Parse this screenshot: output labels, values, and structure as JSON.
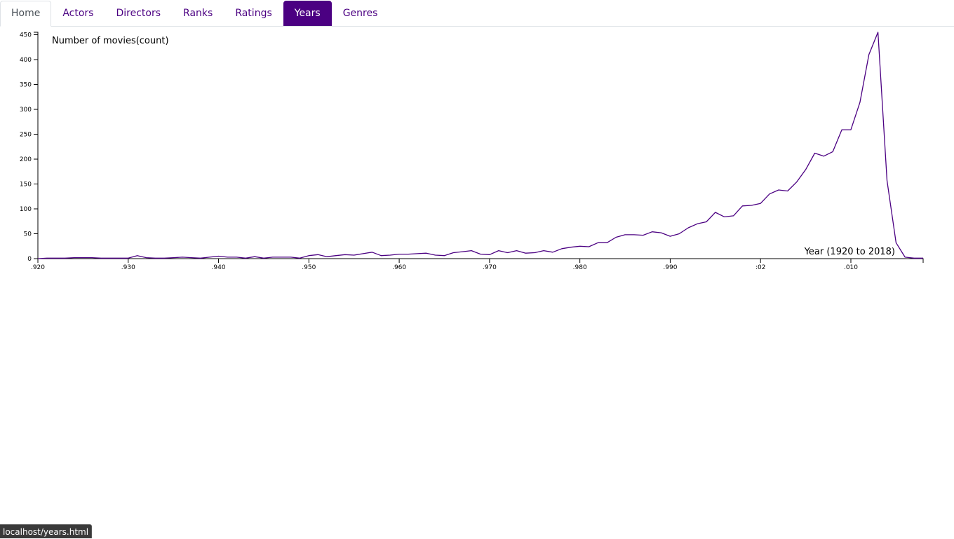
{
  "nav": {
    "tabs": [
      {
        "label": "Home",
        "state": "home"
      },
      {
        "label": "Actors",
        "state": ""
      },
      {
        "label": "Directors",
        "state": ""
      },
      {
        "label": "Ranks",
        "state": ""
      },
      {
        "label": "Ratings",
        "state": ""
      },
      {
        "label": "Years",
        "state": "active"
      },
      {
        "label": "Genres",
        "state": ""
      }
    ]
  },
  "colors": {
    "accent": "#4b0082",
    "line": "#4b0082"
  },
  "chart_data": {
    "type": "line",
    "ylabel": "Number of movies(count)",
    "xlabel": "Year (1920 to 2018)",
    "xlim": [
      1920,
      2018
    ],
    "ylim": [
      0,
      455
    ],
    "y_ticks": [
      0,
      50,
      100,
      150,
      200,
      250,
      300,
      350,
      400,
      450
    ],
    "x_ticks": [
      {
        "value": 1920,
        "label": ".920"
      },
      {
        "value": 1930,
        "label": ".930"
      },
      {
        "value": 1940,
        "label": ".940"
      },
      {
        "value": 1950,
        "label": ".950"
      },
      {
        "value": 1960,
        "label": ".960"
      },
      {
        "value": 1970,
        "label": ".970"
      },
      {
        "value": 1980,
        "label": ".980"
      },
      {
        "value": 1990,
        "label": ".990"
      },
      {
        "value": 2000,
        "label": ":02"
      },
      {
        "value": 2010,
        "label": ".010"
      }
    ],
    "grid": false,
    "x": [
      1920,
      1921,
      1922,
      1923,
      1924,
      1925,
      1926,
      1927,
      1928,
      1929,
      1930,
      1931,
      1932,
      1933,
      1934,
      1935,
      1936,
      1937,
      1938,
      1939,
      1940,
      1941,
      1942,
      1943,
      1944,
      1945,
      1946,
      1947,
      1948,
      1949,
      1950,
      1951,
      1952,
      1953,
      1954,
      1955,
      1956,
      1957,
      1958,
      1959,
      1960,
      1961,
      1962,
      1963,
      1964,
      1965,
      1966,
      1967,
      1968,
      1969,
      1970,
      1971,
      1972,
      1973,
      1974,
      1975,
      1976,
      1977,
      1978,
      1979,
      1980,
      1981,
      1982,
      1983,
      1984,
      1985,
      1986,
      1987,
      1988,
      1989,
      1990,
      1991,
      1992,
      1993,
      1994,
      1995,
      1996,
      1997,
      1998,
      1999,
      2000,
      2001,
      2002,
      2003,
      2004,
      2005,
      2006,
      2007,
      2008,
      2009,
      2010,
      2011,
      2012,
      2013,
      2014,
      2015,
      2016,
      2017,
      2018
    ],
    "values": [
      0,
      1,
      1,
      1,
      2,
      2,
      2,
      1,
      1,
      1,
      1,
      6,
      2,
      1,
      1,
      2,
      3,
      2,
      1,
      3,
      5,
      3,
      3,
      1,
      4,
      1,
      3,
      3,
      3,
      1,
      6,
      8,
      4,
      6,
      8,
      7,
      10,
      13,
      6,
      7,
      9,
      9,
      10,
      11,
      7,
      6,
      12,
      14,
      16,
      9,
      8,
      16,
      12,
      16,
      11,
      12,
      16,
      13,
      20,
      23,
      25,
      24,
      32,
      32,
      43,
      48,
      48,
      47,
      54,
      52,
      45,
      50,
      62,
      70,
      74,
      93,
      84,
      86,
      106,
      107,
      111,
      130,
      138,
      136,
      154,
      179,
      212,
      206,
      215,
      259,
      259,
      314,
      410,
      455,
      157,
      32,
      3,
      1,
      1
    ]
  },
  "status_bar": {
    "url": "localhost/years.html"
  }
}
